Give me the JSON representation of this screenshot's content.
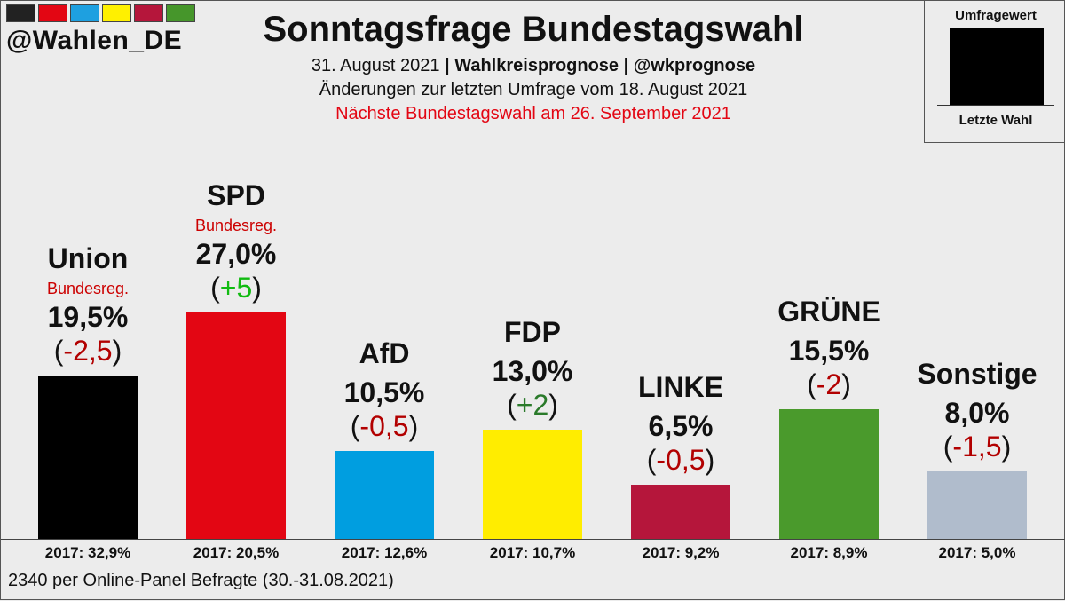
{
  "header": {
    "handle": "@Wahlen_DE",
    "swatch_colors": [
      "#222222",
      "#e30613",
      "#1ea0e0",
      "#fff000",
      "#b5163b",
      "#46962b"
    ],
    "title": "Sonntagsfrage Bundestagswahl",
    "subline1_date": "31. August 2021",
    "subline1_sep1": " | ",
    "subline1_source": "Wahlkreisprognose",
    "subline1_sep2": " | ",
    "subline1_handle": "@wkprognose",
    "subline2": "Änderungen zur letzten Umfrage vom 18. August 2021",
    "subline3": "Nächste Bundestagswahl am 26. September 2021",
    "subline3_color": "#e30613"
  },
  "legend": {
    "top": "Umfragewert",
    "bottom": "Letzte Wahl"
  },
  "footer": {
    "text": "2340 per Online-Panel Befragte (30.-31.08.2021)"
  },
  "chart_data": {
    "type": "bar",
    "title": "Sonntagsfrage Bundestagswahl",
    "categories": [
      "Union",
      "SPD",
      "AfD",
      "FDP",
      "LINKE",
      "GRÜNE",
      "Sonstige"
    ],
    "values": [
      19.5,
      27.0,
      10.5,
      13.0,
      6.5,
      15.5,
      8.0
    ],
    "value_labels": [
      "19,5%",
      "27,0%",
      "10,5%",
      "13,0%",
      "6,5%",
      "15,5%",
      "8,0%"
    ],
    "changes": [
      "-2,5",
      "+5",
      "-0,5",
      "+2",
      "-0,5",
      "-2",
      "-1,5"
    ],
    "change_colors": [
      "neg",
      "pos",
      "neg",
      "pos2",
      "neg",
      "neg",
      "neg"
    ],
    "previous_2017": [
      "2017: 32,9%",
      "2017: 20,5%",
      "2017: 12,6%",
      "2017: 10,7%",
      "2017: 9,2%",
      "2017: 8,9%",
      "2017: 5,0%"
    ],
    "gov_labels": [
      "Bundesreg.",
      "Bundesreg.",
      "",
      "",
      "",
      "",
      ""
    ],
    "colors": [
      "#000000",
      "#e30613",
      "#009ee0",
      "#ffed00",
      "#b5163b",
      "#4a9a2c",
      "#b0bccc"
    ],
    "ylim": [
      0,
      30
    ]
  }
}
